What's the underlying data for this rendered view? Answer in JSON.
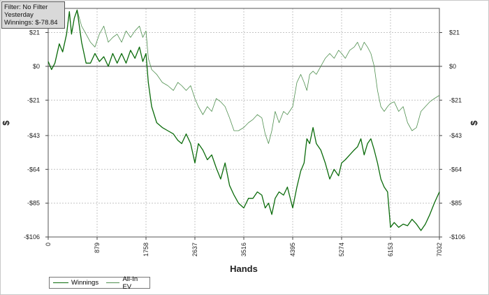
{
  "info_box": {
    "filter": "Filter: No Filter",
    "period": "Yesterday",
    "winnings": "Winnings: $-78.84"
  },
  "colors": {
    "winnings": "#0b6b0b",
    "allin_ev": "#4f8f4f",
    "zero_line": "#333333",
    "grid": "#c4c4c4"
  },
  "chart_data": {
    "type": "line",
    "xlabel": "Hands",
    "ylabel": "$",
    "xlim": [
      0,
      7032
    ],
    "ylim": [
      -106,
      36
    ],
    "x_ticks": [
      0,
      879,
      1758,
      2637,
      3516,
      4395,
      5274,
      6153,
      7032
    ],
    "y_ticks": [
      21,
      0,
      -21,
      -43,
      -64,
      -85,
      -106
    ],
    "y_tick_labels": [
      "$21",
      "$0",
      "-$21",
      "-$43",
      "-$64",
      "-$85",
      "-$106"
    ],
    "grid": true,
    "legend_position": "bottom-left",
    "series": [
      {
        "name": "Winnings",
        "x": [
          0,
          60,
          120,
          200,
          260,
          330,
          380,
          420,
          470,
          520,
          600,
          680,
          760,
          840,
          920,
          1000,
          1080,
          1160,
          1240,
          1320,
          1400,
          1480,
          1560,
          1640,
          1700,
          1758,
          1800,
          1860,
          1950,
          2050,
          2150,
          2250,
          2330,
          2400,
          2480,
          2560,
          2637,
          2700,
          2780,
          2860,
          2940,
          3020,
          3100,
          3180,
          3260,
          3340,
          3420,
          3516,
          3600,
          3680,
          3760,
          3840,
          3900,
          3960,
          4020,
          4080,
          4150,
          4230,
          4300,
          4395,
          4470,
          4540,
          4600,
          4650,
          4700,
          4760,
          4820,
          4900,
          4980,
          5060,
          5140,
          5220,
          5274,
          5340,
          5420,
          5500,
          5560,
          5620,
          5680,
          5740,
          5800,
          5860,
          5920,
          5980,
          6040,
          6100,
          6153,
          6220,
          6300,
          6380,
          6460,
          6540,
          6620,
          6700,
          6780,
          6860,
          6940,
          7032
        ],
        "y": [
          3,
          -2,
          2,
          14,
          9,
          20,
          34,
          20,
          30,
          35,
          15,
          2,
          2,
          8,
          3,
          6,
          0,
          8,
          2,
          8,
          2,
          10,
          5,
          12,
          3,
          8,
          -10,
          -25,
          -35,
          -38,
          -40,
          -42,
          -46,
          -48,
          -42,
          -48,
          -60,
          -48,
          -52,
          -58,
          -55,
          -63,
          -70,
          -60,
          -74,
          -80,
          -85,
          -88,
          -82,
          -82,
          -78,
          -80,
          -88,
          -85,
          -92,
          -82,
          -78,
          -80,
          -75,
          -88,
          -75,
          -65,
          -60,
          -45,
          -48,
          -38,
          -48,
          -52,
          -60,
          -70,
          -64,
          -68,
          -60,
          -58,
          -55,
          -52,
          -50,
          -45,
          -55,
          -48,
          -45,
          -52,
          -60,
          -70,
          -75,
          -78,
          -100,
          -97,
          -100,
          -98,
          -99,
          -95,
          -98,
          -102,
          -98,
          -92,
          -85,
          -78
        ]
      },
      {
        "name": "All-In EV",
        "x": [
          0,
          60,
          120,
          200,
          260,
          330,
          380,
          420,
          470,
          520,
          600,
          680,
          760,
          840,
          920,
          1000,
          1080,
          1160,
          1240,
          1320,
          1400,
          1480,
          1560,
          1640,
          1700,
          1758,
          1800,
          1860,
          1950,
          2050,
          2150,
          2250,
          2330,
          2400,
          2480,
          2560,
          2637,
          2700,
          2780,
          2860,
          2940,
          3020,
          3100,
          3180,
          3260,
          3340,
          3420,
          3516,
          3600,
          3680,
          3760,
          3840,
          3900,
          3960,
          4020,
          4080,
          4150,
          4230,
          4300,
          4395,
          4470,
          4540,
          4600,
          4650,
          4700,
          4760,
          4820,
          4900,
          4980,
          5060,
          5140,
          5220,
          5274,
          5340,
          5420,
          5500,
          5560,
          5620,
          5680,
          5740,
          5800,
          5860,
          5920,
          5980,
          6040,
          6100,
          6153,
          6220,
          6300,
          6380,
          6460,
          6540,
          6620,
          6700,
          6780,
          6860,
          6940,
          7032
        ],
        "y": [
          3,
          -2,
          2,
          14,
          9,
          20,
          34,
          20,
          30,
          35,
          25,
          20,
          15,
          12,
          20,
          25,
          15,
          18,
          20,
          15,
          22,
          18,
          22,
          25,
          18,
          22,
          5,
          -2,
          -5,
          -10,
          -12,
          -15,
          -10,
          -12,
          -15,
          -12,
          -20,
          -25,
          -30,
          -25,
          -28,
          -20,
          -22,
          -25,
          -32,
          -40,
          -40,
          -38,
          -35,
          -33,
          -30,
          -32,
          -42,
          -48,
          -40,
          -28,
          -35,
          -28,
          -30,
          -25,
          -10,
          -5,
          -10,
          -15,
          -5,
          -3,
          -5,
          0,
          5,
          8,
          5,
          10,
          8,
          5,
          10,
          12,
          15,
          10,
          15,
          12,
          8,
          0,
          -15,
          -25,
          -28,
          -25,
          -23,
          -22,
          -28,
          -25,
          -35,
          -40,
          -38,
          -28,
          -25,
          -22,
          -20,
          -18
        ]
      }
    ]
  }
}
